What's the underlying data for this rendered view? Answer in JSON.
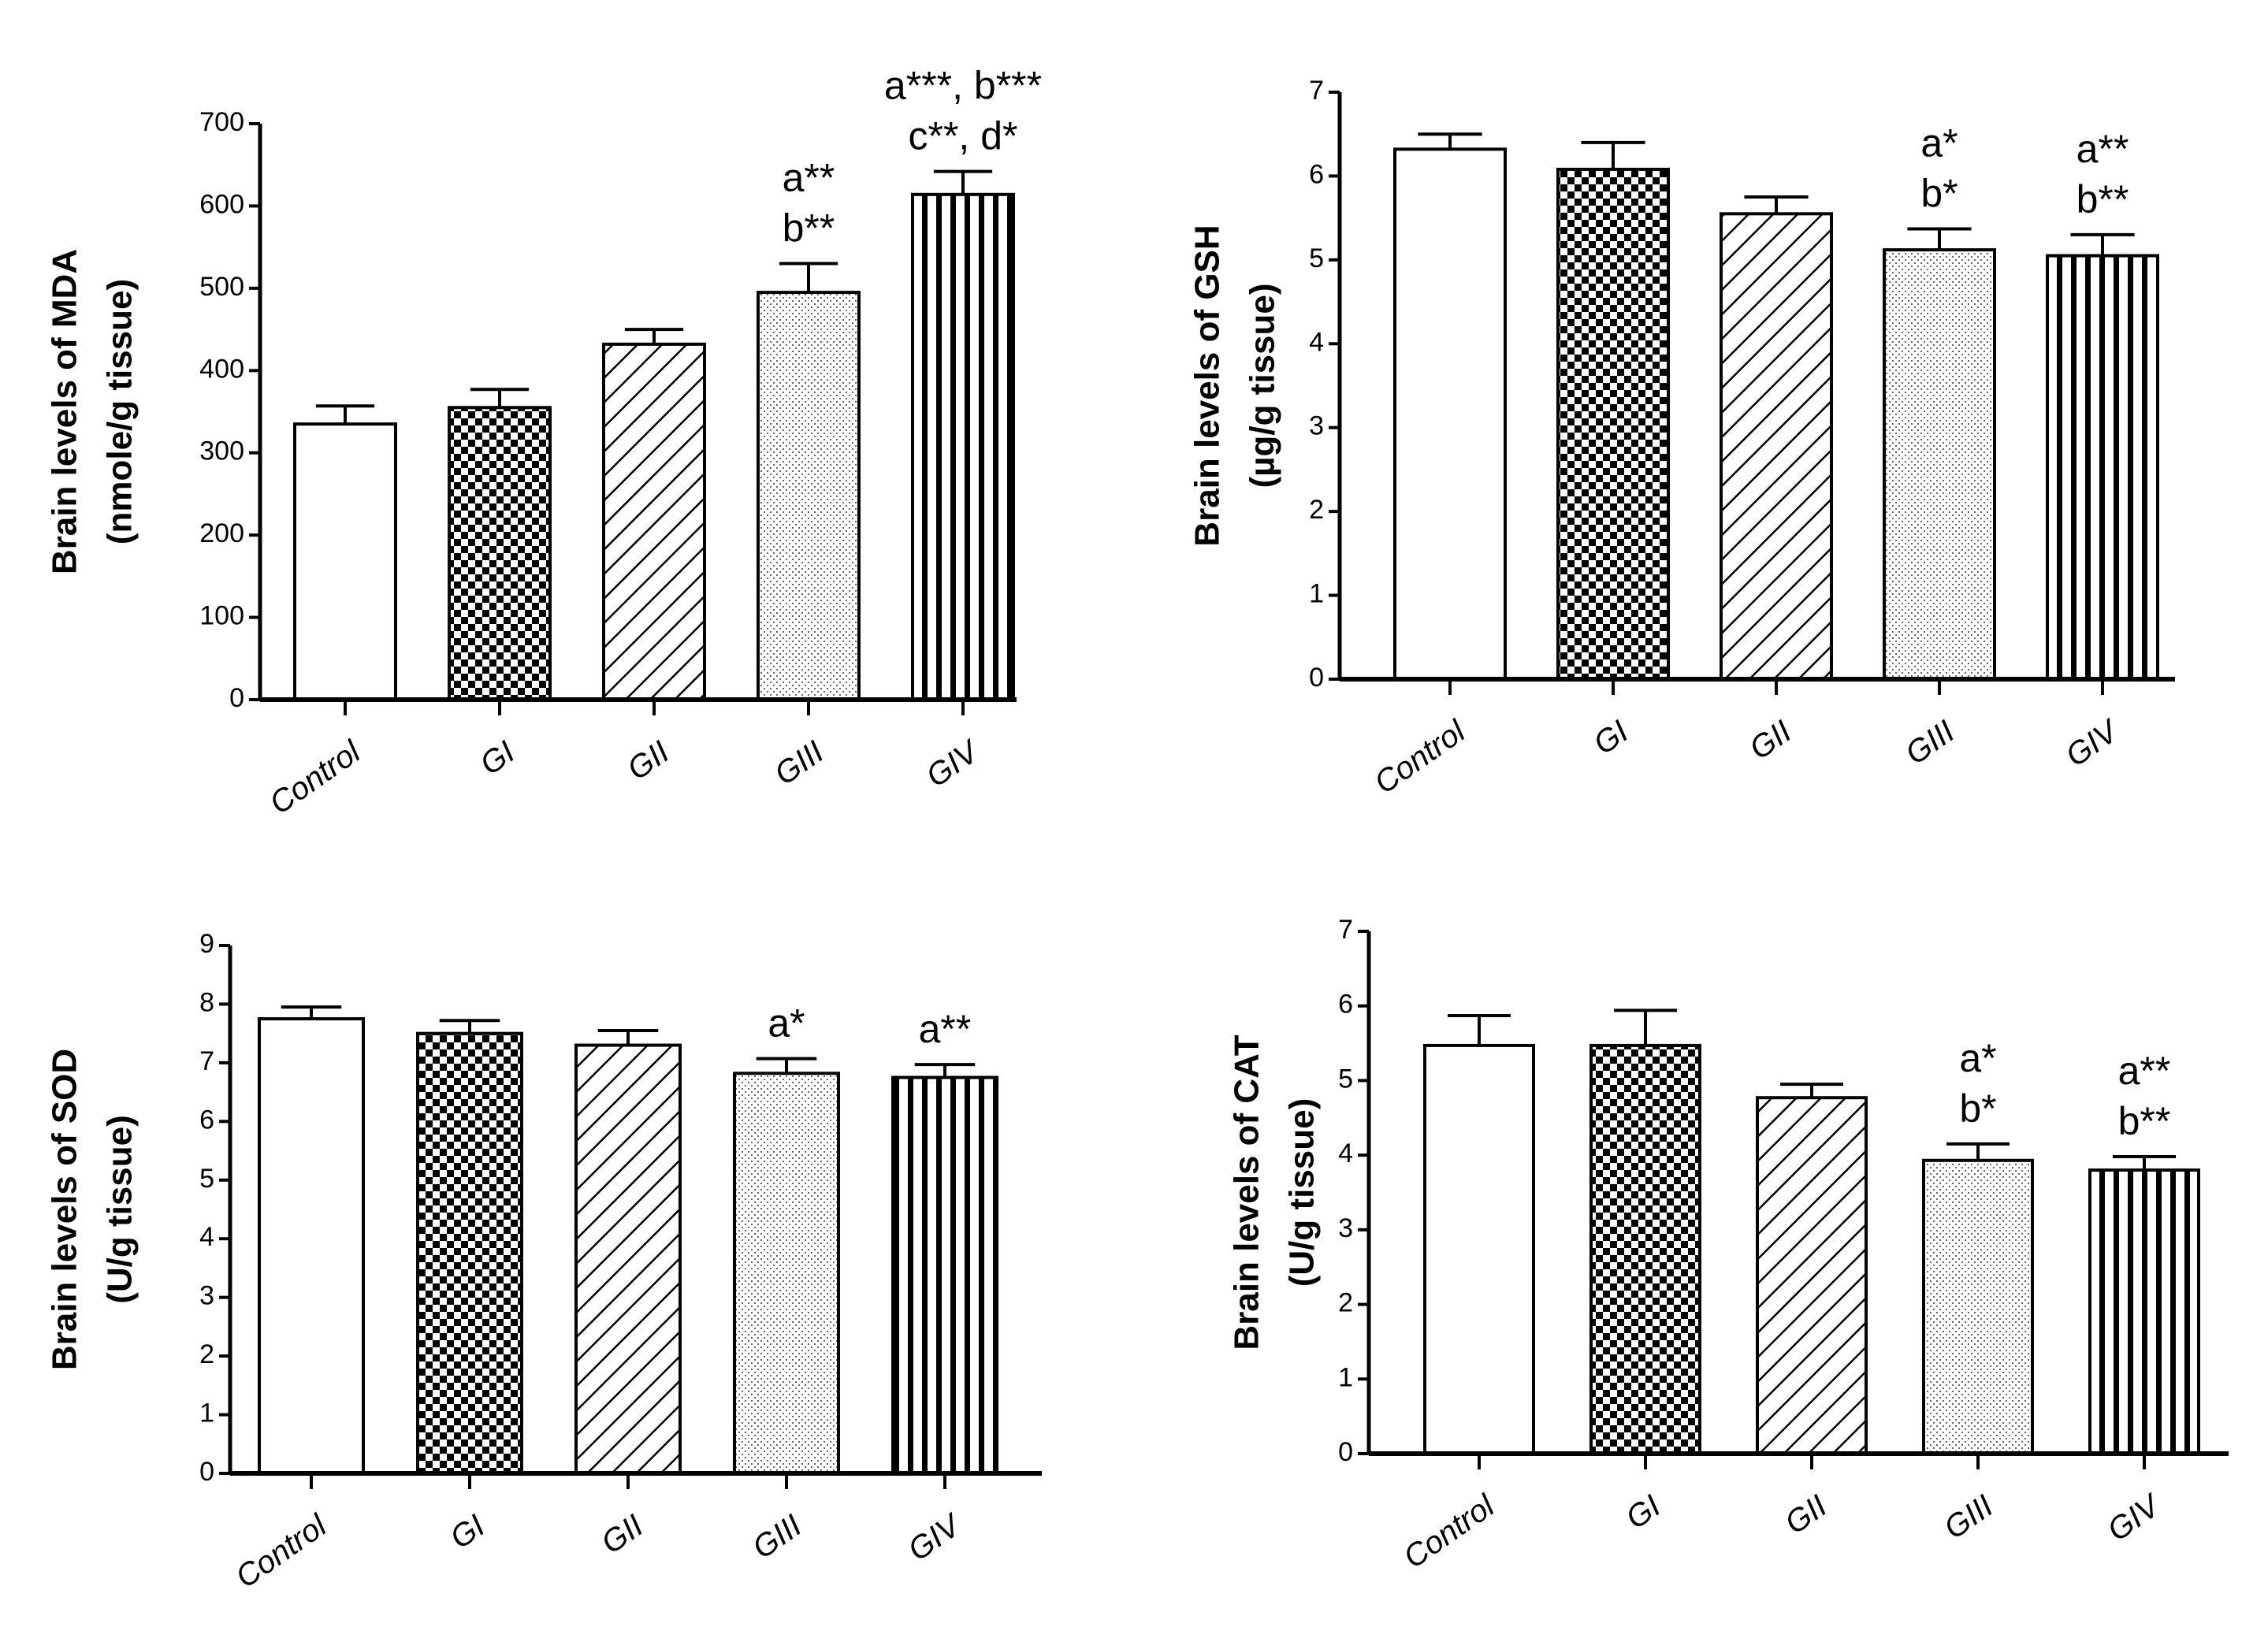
{
  "chart_data": [
    {
      "id": "mda",
      "type": "bar",
      "title": "",
      "xlabel": "",
      "ylabel": "Brain levels of MDA",
      "ylabel_unit": "(nmole/g tissue)",
      "categories": [
        "Control",
        "GI",
        "GII",
        "GIII",
        "GIV"
      ],
      "values": [
        335,
        355,
        432,
        495,
        614
      ],
      "errors": [
        22,
        22,
        18,
        35,
        28
      ],
      "ylim": [
        0,
        700
      ],
      "yticks": [
        "0",
        "100",
        "200",
        "300",
        "400",
        "500",
        "600",
        "700"
      ],
      "patterns": [
        "white",
        "checker",
        "diagonal",
        "dots",
        "vertical"
      ],
      "annotations": [
        {
          "category": "GIII",
          "lines": [
            "a**",
            "b**"
          ]
        },
        {
          "category": "GIV",
          "lines": [
            "a***, b***",
            "c**, d*"
          ]
        }
      ]
    },
    {
      "id": "gsh",
      "type": "bar",
      "title": "",
      "xlabel": "",
      "ylabel": "Brain levels of GSH",
      "ylabel_unit": "(µg/g tissue)",
      "categories": [
        "Control",
        "GI",
        "GII",
        "GIII",
        "GIV"
      ],
      "values": [
        6.32,
        6.08,
        5.55,
        5.12,
        5.05
      ],
      "errors": [
        0.18,
        0.32,
        0.2,
        0.25,
        0.25
      ],
      "ylim": [
        0,
        7
      ],
      "yticks": [
        "0",
        "1",
        "2",
        "3",
        "4",
        "5",
        "6",
        "7"
      ],
      "patterns": [
        "white",
        "checker",
        "diagonal",
        "dots",
        "vertical"
      ],
      "annotations": [
        {
          "category": "GIII",
          "lines": [
            "a*",
            "b*"
          ]
        },
        {
          "category": "GIV",
          "lines": [
            "a**",
            "b**"
          ]
        }
      ]
    },
    {
      "id": "sod",
      "type": "bar",
      "title": "",
      "xlabel": "",
      "ylabel": "Brain levels of SOD",
      "ylabel_unit": "(U/g tissue)",
      "categories": [
        "Control",
        "GI",
        "GII",
        "GIII",
        "GIV"
      ],
      "values": [
        7.75,
        7.5,
        7.3,
        6.82,
        6.75
      ],
      "errors": [
        0.2,
        0.22,
        0.25,
        0.25,
        0.22
      ],
      "ylim": [
        0,
        9
      ],
      "yticks": [
        "0",
        "1",
        "2",
        "3",
        "4",
        "5",
        "6",
        "7",
        "8",
        "9"
      ],
      "patterns": [
        "white",
        "checker",
        "diagonal",
        "dots",
        "vertical"
      ],
      "annotations": [
        {
          "category": "GIII",
          "lines": [
            "a*"
          ]
        },
        {
          "category": "GIV",
          "lines": [
            "a**"
          ]
        }
      ]
    },
    {
      "id": "cat",
      "type": "bar",
      "title": "",
      "xlabel": "",
      "ylabel": "Brain levels of CAT",
      "ylabel_unit": "(U/g tissue)",
      "categories": [
        "Control",
        "GI",
        "GII",
        "GIII",
        "GIV"
      ],
      "values": [
        5.47,
        5.47,
        4.77,
        3.93,
        3.8
      ],
      "errors": [
        0.4,
        0.47,
        0.18,
        0.22,
        0.18
      ],
      "ylim": [
        0,
        7
      ],
      "yticks": [
        "0",
        "1",
        "2",
        "3",
        "4",
        "5",
        "6",
        "7"
      ],
      "patterns": [
        "white",
        "checker",
        "diagonal",
        "dots",
        "vertical"
      ],
      "annotations": [
        {
          "category": "GIII",
          "lines": [
            "a*",
            "b*"
          ]
        },
        {
          "category": "GIV",
          "lines": [
            "a**",
            "b**"
          ]
        }
      ]
    }
  ]
}
